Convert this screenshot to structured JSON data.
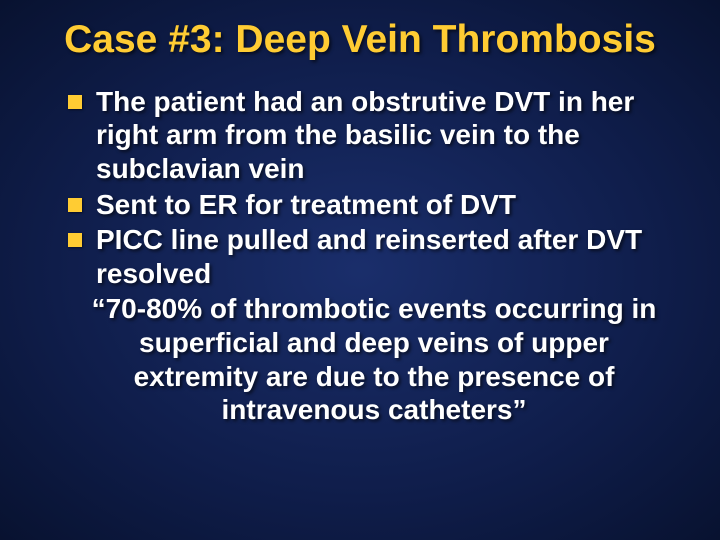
{
  "slide": {
    "title": "Case #3: Deep Vein Thrombosis",
    "bullets": [
      "The patient had an obstrutive DVT in her right arm from the basilic vein to the subclavian vein",
      "Sent to ER for treatment of DVT",
      "PICC line pulled and reinserted after DVT resolved"
    ],
    "quote": "“70-80% of thrombotic events occurring in superficial and deep veins of upper extremity are due to the presence of intravenous catheters”"
  },
  "style": {
    "background_gradient_inner": "#1a2e6b",
    "background_gradient_mid": "#0f1d4a",
    "background_gradient_outer": "#081230",
    "title_color": "#ffcc33",
    "bullet_marker_color": "#ffcc33",
    "body_text_color": "#ffffff",
    "title_fontsize": 39,
    "body_fontsize": 28,
    "bullet_marker_size": 14,
    "font_family": "Arial",
    "font_weight": "bold"
  }
}
